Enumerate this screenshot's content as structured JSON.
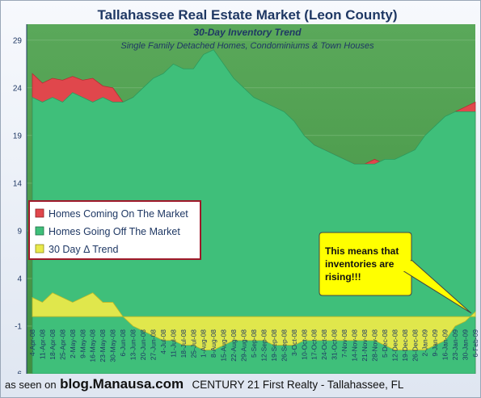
{
  "chart_data": {
    "type": "area",
    "title": "Tallahassee Real Estate Market (Leon County)",
    "subtitle": "30-Day Inventory Trend",
    "subtitle2": "Single Family Detached Homes, Condominiums & Town Houses",
    "ylim": [
      -6,
      30
    ],
    "yticks": [
      29,
      24,
      19,
      14,
      9,
      4,
      -1,
      -6
    ],
    "grid": true,
    "legend_position": "left-middle",
    "x_labels": [
      "4-Apr-08",
      "11-Apr-08",
      "18-Apr-08",
      "25-Apr-08",
      "2-May-08",
      "9-May-08",
      "16-May-08",
      "23-May-08",
      "30-May-08",
      "6-Jun-08",
      "13-Jun-08",
      "20-Jun-08",
      "27-Jun-08",
      "4-Jul-08",
      "11-Jul-08",
      "18-Jul-08",
      "25-Jul-08",
      "1-Aug-08",
      "8-Aug-08",
      "15-Aug-08",
      "22-Aug-08",
      "29-Aug-08",
      "5-Sep-08",
      "12-Sep-08",
      "19-Sep-08",
      "26-Sep-08",
      "3-Oct-08",
      "10-Oct-08",
      "17-Oct-08",
      "24-Oct-08",
      "31-Oct-08",
      "7-Nov-08",
      "14-Nov-08",
      "21-Nov-08",
      "28-Nov-08",
      "5-Dec-08",
      "12-Dec-08",
      "19-Dec-08",
      "26-Dec-08",
      "2-Jan-09",
      "9-Jan-09",
      "16-Jan-09",
      "23-Jan-09",
      "30-Jan-09",
      "6-Feb-09"
    ],
    "series": [
      {
        "name": "Homes Coming On The Market",
        "color": "#e0474c",
        "values": [
          25.5,
          24.5,
          25.0,
          24.8,
          25.2,
          24.8,
          25.0,
          24.2,
          24.0,
          22.5,
          23.0,
          23.8,
          24.5,
          25.0,
          25.2,
          25.0,
          25.0,
          25.5,
          26.0,
          25.0,
          24.0,
          23.5,
          22.5,
          22.0,
          21.5,
          21.0,
          20.0,
          19.0,
          18.0,
          17.5,
          17.0,
          16.5,
          16.0,
          16.0,
          16.5,
          16.0,
          16.0,
          16.5,
          17.0,
          18.5,
          19.5,
          20.5,
          21.5,
          22.0,
          22.5
        ]
      },
      {
        "name": "Homes Going Off The Market",
        "color": "#3fbf7a",
        "values": [
          23.0,
          22.5,
          23.0,
          22.5,
          23.5,
          23.0,
          22.5,
          23.0,
          22.5,
          22.5,
          23.0,
          24.0,
          25.0,
          25.5,
          26.5,
          26.0,
          26.0,
          27.5,
          28.0,
          26.5,
          25.0,
          24.0,
          23.0,
          22.5,
          22.0,
          21.5,
          20.5,
          19.0,
          18.0,
          17.5,
          17.0,
          16.5,
          16.0,
          16.0,
          16.0,
          16.5,
          16.5,
          17.0,
          17.5,
          19.0,
          20.0,
          21.0,
          21.5,
          21.5,
          21.5
        ]
      },
      {
        "name": "30 Day Δ Trend",
        "color": "#e9e94a",
        "values": [
          2.0,
          1.5,
          2.5,
          2.0,
          1.5,
          2.0,
          2.5,
          1.5,
          1.5,
          0.0,
          -1.0,
          -1.5,
          -2.0,
          -2.5,
          -2.5,
          -3.0,
          -3.0,
          -3.5,
          -3.5,
          -3.0,
          -2.5,
          -2.5,
          -2.5,
          -2.5,
          -3.0,
          -3.0,
          -3.0,
          -2.5,
          -2.5,
          -2.5,
          -2.5,
          -2.5,
          -2.5,
          -2.5,
          -2.5,
          -3.0,
          -3.5,
          -3.5,
          -3.5,
          -3.5,
          -3.0,
          -2.5,
          -1.0,
          -0.5,
          0.5
        ]
      }
    ],
    "annotation": "This means that inventories are rising!!!"
  },
  "footer": {
    "prefix": "as seen on",
    "site": "blog.Manausa.com",
    "company": "CENTURY 21 First Realty - Tallahassee, FL"
  },
  "colors": {
    "background": "#4a9e4a",
    "title": "#1f3864",
    "legend_border": "#a0182a",
    "callout_fill": "#ffff00"
  }
}
